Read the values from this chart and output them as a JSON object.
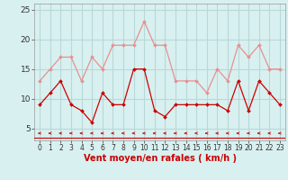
{
  "x": [
    0,
    1,
    2,
    3,
    4,
    5,
    6,
    7,
    8,
    9,
    10,
    11,
    12,
    13,
    14,
    15,
    16,
    17,
    18,
    19,
    20,
    21,
    22,
    23
  ],
  "vent_moyen": [
    9,
    11,
    13,
    9,
    8,
    6,
    11,
    9,
    9,
    15,
    15,
    8,
    7,
    9,
    9,
    9,
    9,
    9,
    8,
    13,
    8,
    13,
    11,
    9
  ],
  "rafales": [
    13,
    15,
    17,
    17,
    13,
    17,
    15,
    19,
    19,
    19,
    23,
    19,
    19,
    13,
    13,
    13,
    11,
    15,
    13,
    19,
    17,
    19,
    15,
    15
  ],
  "color_moyen": "#cc0000",
  "color_rafales": "#e89090",
  "bg_color": "#d8f0f0",
  "grid_color": "#b8d8d8",
  "xlabel": "Vent moyen/en rafales ( km/h )",
  "ylim": [
    3,
    26
  ],
  "yticks": [
    5,
    10,
    15,
    20,
    25
  ],
  "xticks": [
    0,
    1,
    2,
    3,
    4,
    5,
    6,
    7,
    8,
    9,
    10,
    11,
    12,
    13,
    14,
    15,
    16,
    17,
    18,
    19,
    20,
    21,
    22,
    23
  ],
  "axis_fontsize": 7,
  "tick_fontsize": 6.5
}
